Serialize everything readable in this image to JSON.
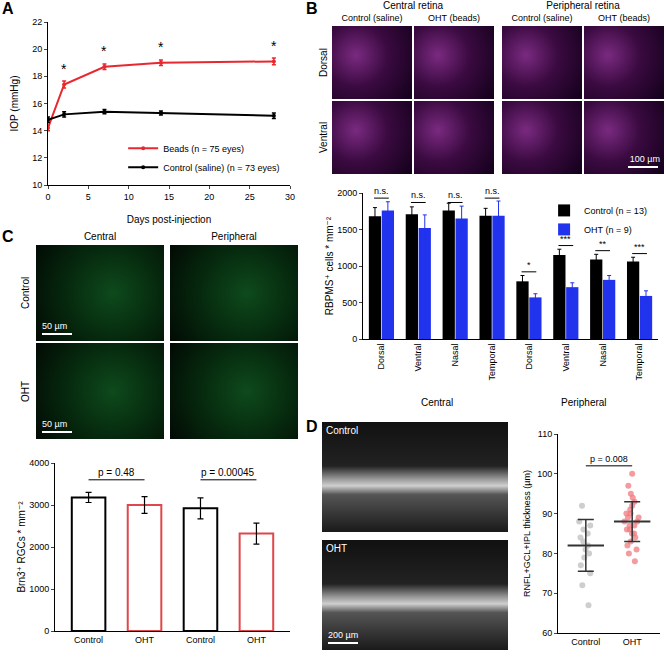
{
  "panel_labels": [
    "A",
    "B",
    "C",
    "D"
  ],
  "images": {
    "B": {
      "columns": [
        {
          "title": "Central retina",
          "labels": [
            "Control (saline)",
            "OHT (beads)"
          ]
        },
        {
          "title": "Peripheral retina",
          "labels": [
            "Control (saline)",
            "OHT (beads)"
          ]
        }
      ],
      "rows": [
        "Dorsal",
        "Ventral"
      ],
      "scale_bar": "100 µm"
    },
    "C": {
      "columns": [
        "Central",
        "Peripheral"
      ],
      "rows": [
        "Control",
        "OHT"
      ],
      "scale_bar": "50 µm"
    },
    "D": {
      "rows": [
        "Control",
        "OHT"
      ],
      "scale_bar": "200 µm"
    }
  },
  "chart_data": [
    {
      "type": "line",
      "x_label": "Days post-injection",
      "y_label": "IOP (mmHg)",
      "x": [
        0,
        2,
        7,
        14,
        28
      ],
      "series": [
        {
          "name": "Beads (n = 75 eyes)",
          "color": "#e8282f",
          "values": [
            14.2,
            17.4,
            18.7,
            19.0,
            19.1
          ],
          "errors": [
            0.2,
            0.25,
            0.2,
            0.2,
            0.25
          ]
        },
        {
          "name": "Control (saline) (n = 73 eyes)",
          "color": "#000000",
          "values": [
            14.8,
            15.2,
            15.4,
            15.3,
            15.1
          ],
          "errors": [
            0.2,
            0.2,
            0.15,
            0.15,
            0.2
          ]
        }
      ],
      "annotations": [
        {
          "text": "*",
          "x": 2,
          "y": 17.8
        },
        {
          "text": "*",
          "x": 7,
          "y": 19.1
        },
        {
          "text": "*",
          "x": 14,
          "y": 19.4
        },
        {
          "text": "*",
          "x": 28,
          "y": 19.5
        }
      ],
      "xlim": [
        0,
        30
      ],
      "xticks": [
        0,
        5,
        10,
        15,
        20,
        25,
        30
      ],
      "ylim": [
        10,
        22
      ],
      "yticks": [
        10,
        12,
        14,
        16,
        18,
        20,
        22
      ],
      "grid": false,
      "legend": "bottom right"
    },
    {
      "type": "bar",
      "y_label": "RBPMS⁺ cells * mm⁻²",
      "categories": [
        "Dorsal",
        "Ventral",
        "Nasal",
        "Temporal",
        "Dorsal",
        "Ventral",
        "Nasal",
        "Temporal"
      ],
      "groups": [
        {
          "name": "Central",
          "size": 4
        },
        {
          "name": "Peripheral",
          "size": 4
        }
      ],
      "series": [
        {
          "name": "Control (n = 13)",
          "color": "#000000",
          "values": [
            1680,
            1710,
            1760,
            1690,
            790,
            1150,
            1090,
            1060
          ],
          "errors": [
            120,
            100,
            100,
            100,
            80,
            80,
            70,
            60
          ]
        },
        {
          "name": "OHT (n = 9)",
          "color": "#2233ee",
          "values": [
            1760,
            1520,
            1650,
            1690,
            570,
            710,
            810,
            590
          ],
          "errors": [
            120,
            180,
            170,
            200,
            50,
            60,
            60,
            70
          ]
        }
      ],
      "annotations": [
        {
          "text": "n.s.",
          "x": 0,
          "y": 1930
        },
        {
          "text": "n.s.",
          "x": 1,
          "y": 1870
        },
        {
          "text": "n.s.",
          "x": 2,
          "y": 1870
        },
        {
          "text": "n.s.",
          "x": 3,
          "y": 1930
        },
        {
          "text": "*",
          "x": 4,
          "y": 920
        },
        {
          "text": "***",
          "x": 5,
          "y": 1280
        },
        {
          "text": "**",
          "x": 6,
          "y": 1210
        },
        {
          "text": "***",
          "x": 7,
          "y": 1170
        }
      ],
      "ylim": [
        0,
        2000
      ],
      "yticks": [
        0,
        500,
        1000,
        1500,
        2000
      ],
      "grid": false,
      "legend": "top right"
    },
    {
      "type": "bar",
      "y_label": "Brn3⁺ RGCs * mm⁻²",
      "categories": [
        "Control",
        "OHT",
        "Control",
        "OHT"
      ],
      "values": [
        3180,
        3000,
        2920,
        2320
      ],
      "errors": [
        120,
        200,
        250,
        250
      ],
      "colors": [
        "#000000",
        "#e0474c",
        "#000000",
        "#e0474c"
      ],
      "annotations": [
        {
          "text": "p = 0.48",
          "x": [
            0,
            1
          ],
          "y": 3600
        },
        {
          "text": "p = 0.00045",
          "x": [
            2,
            3
          ],
          "y": 3600
        }
      ],
      "ylim": [
        0,
        4000
      ],
      "yticks": [
        0,
        1000,
        2000,
        3000,
        4000
      ],
      "grid": false
    },
    {
      "type": "scatter",
      "y_label": "RNFL+GCL+IPL thickness (µm)",
      "categories": [
        "Control",
        "OHT"
      ],
      "colors": [
        "#bdbdbd",
        "#f07a80"
      ],
      "values": [
        [
          67,
          72,
          75,
          77,
          79,
          80,
          81,
          82,
          83,
          84,
          85,
          86,
          87,
          88,
          92
        ],
        [
          78,
          80,
          81,
          82,
          83,
          84,
          85,
          85,
          86,
          86,
          87,
          87,
          88,
          88,
          89,
          89,
          90,
          90,
          91,
          92,
          93,
          94,
          95,
          97,
          100
        ]
      ],
      "means": [
        82,
        88
      ],
      "sds": [
        6.5,
        5
      ],
      "annotations": [
        {
          "text": "p = 0.008",
          "x": [
            0,
            1
          ],
          "y": 102
        }
      ],
      "ylim": [
        60,
        110
      ],
      "yticks": [
        60,
        70,
        80,
        90,
        100,
        110
      ],
      "grid": false
    }
  ]
}
